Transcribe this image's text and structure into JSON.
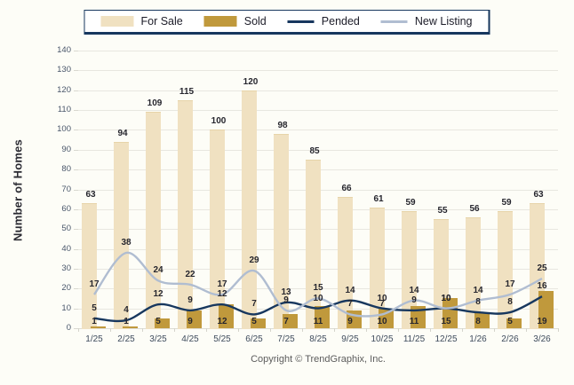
{
  "chart_data": {
    "type": "combo-bar-line",
    "categories": [
      "1/25",
      "2/25",
      "3/25",
      "4/25",
      "5/25",
      "6/25",
      "7/25",
      "8/25",
      "9/25",
      "10/25",
      "11/25",
      "12/25",
      "1/26",
      "2/26",
      "3/26"
    ],
    "series": [
      {
        "name": "For Sale",
        "type": "bar",
        "color": "#F0E1C1",
        "values": [
          63,
          94,
          109,
          115,
          100,
          120,
          98,
          85,
          66,
          61,
          59,
          55,
          56,
          59,
          63
        ]
      },
      {
        "name": "Sold",
        "type": "bar",
        "color": "#C0993C",
        "values": [
          1,
          1,
          5,
          9,
          12,
          5,
          7,
          11,
          9,
          10,
          11,
          15,
          8,
          5,
          19
        ]
      },
      {
        "name": "Pended",
        "type": "line",
        "color": "#17375E",
        "values": [
          5,
          4,
          12,
          9,
          12,
          7,
          13,
          10,
          14,
          10,
          9,
          10,
          8,
          8,
          16
        ]
      },
      {
        "name": "New Listing",
        "type": "line",
        "color": "#B0BDD1",
        "values": [
          17,
          38,
          24,
          22,
          17,
          29,
          9,
          15,
          7,
          7,
          14,
          10,
          14,
          17,
          25
        ]
      }
    ],
    "ylabel": "Number of Homes",
    "ylim": [
      0,
      140
    ],
    "ytick_step": 10,
    "grid": true,
    "legend_position": "top-center",
    "footer": "Copyright © TrendGraphix, Inc."
  }
}
